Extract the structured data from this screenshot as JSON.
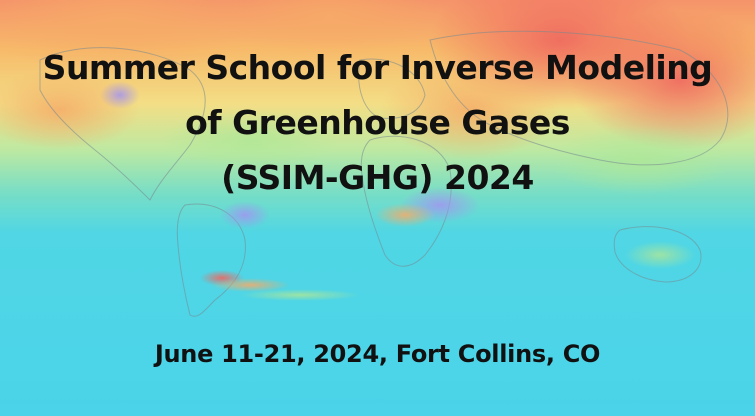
{
  "banner": {
    "title_lines": [
      "Summer School for Inverse Modeling",
      "of Greenhouse Gases",
      "(SSIM-GHG) 2024"
    ],
    "date_location": "June 11-21, 2024, Fort Collins, CO"
  },
  "colors": {
    "ocean_cyan": "#3fd2e6",
    "warm_red": "#f06a5a",
    "warm_orange": "#f7a55a",
    "mid_yellow": "#f3dc7a",
    "mid_green": "#9ee39a",
    "low_purple": "#9b8cf0",
    "text": "#111111"
  }
}
